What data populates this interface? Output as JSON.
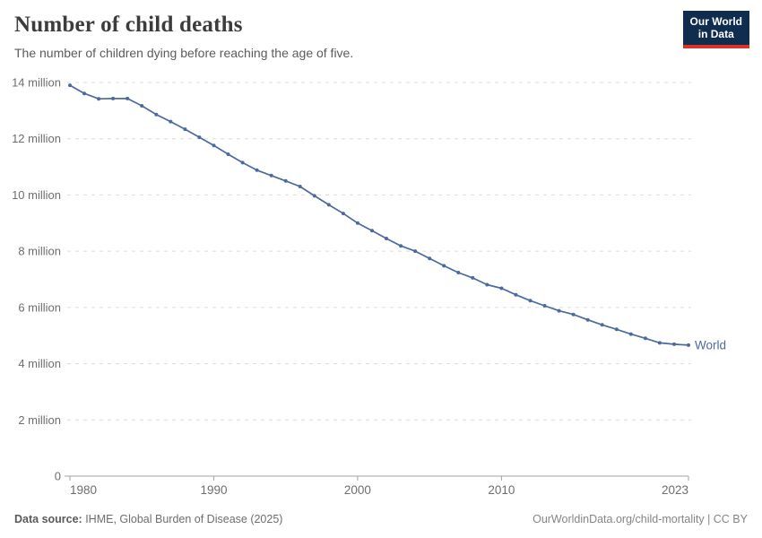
{
  "header": {
    "title": "Number of child deaths",
    "subtitle": "The number of children dying before reaching the age of five."
  },
  "logo": {
    "line1": "Our World",
    "line2": "in Data",
    "bg_color": "#102d50",
    "accent_color": "#d7342a"
  },
  "footer": {
    "source_label": "Data source:",
    "source_text": " IHME, Global Burden of Disease (2025)",
    "credit": "OurWorldinData.org/child-mortality | CC BY"
  },
  "colors": {
    "line": "#4c6a9c",
    "grid": "#dcdcdc",
    "axis": "#a3a3a3",
    "tick_label": "#6e6e6e",
    "title": "#3c3c3c"
  },
  "chart_data": {
    "type": "line",
    "title": "Number of child deaths",
    "xlabel": "",
    "ylabel": "",
    "unit": "million deaths per year",
    "grid": "horizontal dashed",
    "legend": "end-of-line label",
    "ylim": [
      0,
      14
    ],
    "x": [
      1980,
      1981,
      1982,
      1983,
      1984,
      1985,
      1986,
      1987,
      1988,
      1989,
      1990,
      1991,
      1992,
      1993,
      1994,
      1995,
      1996,
      1997,
      1998,
      1999,
      2000,
      2001,
      2002,
      2003,
      2004,
      2005,
      2006,
      2007,
      2008,
      2009,
      2010,
      2011,
      2012,
      2013,
      2014,
      2015,
      2016,
      2017,
      2018,
      2019,
      2020,
      2021,
      2022,
      2023
    ],
    "series": [
      {
        "name": "World",
        "color": "#4c6a9c",
        "values": [
          13.9,
          13.61,
          13.42,
          13.43,
          13.43,
          13.17,
          12.86,
          12.61,
          12.34,
          12.05,
          11.76,
          11.45,
          11.15,
          10.88,
          10.69,
          10.5,
          10.3,
          9.97,
          9.65,
          9.34,
          9.0,
          8.73,
          8.45,
          8.19,
          8.0,
          7.74,
          7.48,
          7.24,
          7.05,
          6.81,
          6.68,
          6.45,
          6.24,
          6.06,
          5.88,
          5.75,
          5.56,
          5.38,
          5.22,
          5.05,
          4.9,
          4.74,
          4.69,
          4.66
        ]
      }
    ],
    "y_ticks": [
      {
        "value": 0,
        "label": "0"
      },
      {
        "value": 2,
        "label": "2 million"
      },
      {
        "value": 4,
        "label": "4 million"
      },
      {
        "value": 6,
        "label": "6 million"
      },
      {
        "value": 8,
        "label": "8 million"
      },
      {
        "value": 10,
        "label": "10 million"
      },
      {
        "value": 12,
        "label": "12 million"
      },
      {
        "value": 14,
        "label": "14 million"
      }
    ],
    "x_ticks": [
      {
        "value": 1980,
        "label": "1980"
      },
      {
        "value": 1990,
        "label": "1990"
      },
      {
        "value": 2000,
        "label": "2000"
      },
      {
        "value": 2010,
        "label": "2010"
      },
      {
        "value": 2023,
        "label": "2023"
      }
    ]
  }
}
